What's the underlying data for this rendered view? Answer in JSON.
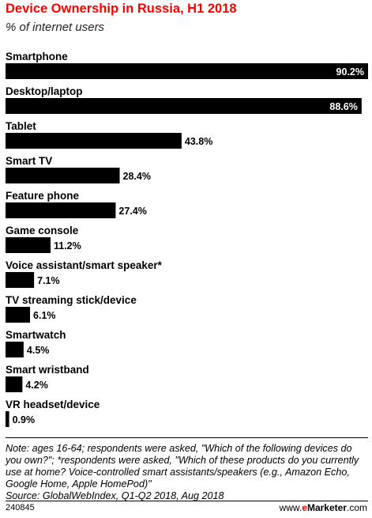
{
  "header": {
    "title": "Device Ownership in Russia, H1 2018",
    "subtitle": "% of internet users"
  },
  "chart_data": {
    "type": "bar",
    "orientation": "horizontal",
    "title": "Device Ownership in Russia, H1 2018",
    "subtitle": "% of internet users",
    "categories": [
      "Smartphone",
      "Desktop/laptop",
      "Tablet",
      "Smart TV",
      "Feature phone",
      "Game console",
      "Voice assistant/smart speaker*",
      "TV streaming stick/device",
      "Smartwatch",
      "Smart wristband",
      "VR headset/device"
    ],
    "values": [
      90.2,
      88.6,
      43.8,
      28.4,
      27.4,
      11.2,
      7.1,
      6.1,
      4.5,
      4.2,
      0.9
    ],
    "value_labels": [
      "90.2%",
      "88.6%",
      "43.8%",
      "28.4%",
      "27.4%",
      "11.2%",
      "7.1%",
      "6.1%",
      "4.5%",
      "4.2%",
      "0.9%"
    ],
    "xlim": [
      0,
      90.2
    ],
    "grid": false,
    "bar_color": "#000000"
  },
  "footer": {
    "note": "Note: ages 16-64; respondents were asked, \"Which of the following devices do you own?\"; *respondents were asked, \"Which of these products do you currently use at home? Voice-controlled smart assistants/speakers (e.g., Amazon Echo, Google Home, Apple HomePod)\"",
    "source": "Source: GlobalWebIndex, Q1-Q2 2018, Aug 2018",
    "chart_id": "240845",
    "brand_prefix": "www.",
    "brand_e": "e",
    "brand_rest": "Marketer",
    "brand_suffix": ".com"
  },
  "colors": {
    "title": "#ff0000",
    "bars": "#000000",
    "inside_label": "#ffffff",
    "outside_label": "#000000"
  }
}
